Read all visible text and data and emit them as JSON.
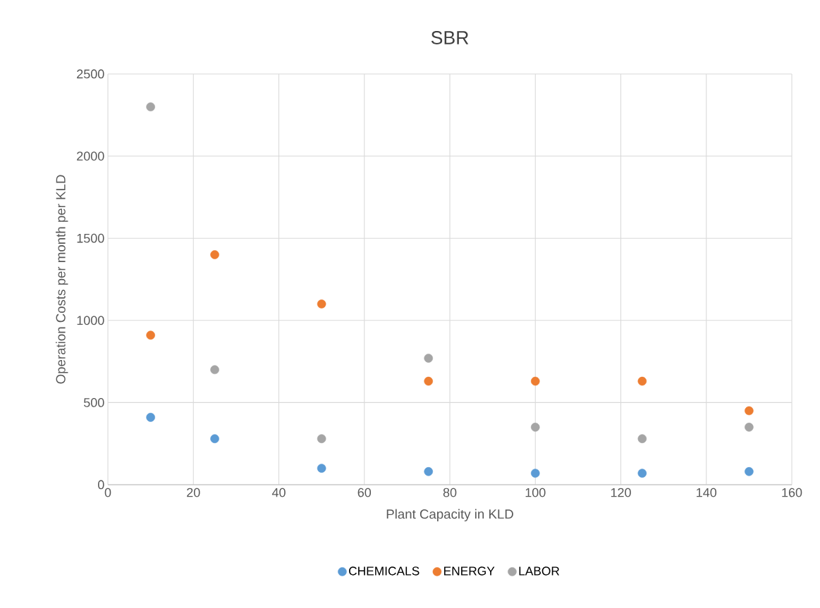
{
  "chart_data": {
    "type": "scatter",
    "title": "SBR",
    "xlabel": "Plant Capacity in KLD",
    "ylabel": "Operation Costs per month per KLD",
    "x": [
      10,
      25,
      50,
      75,
      100,
      125,
      150
    ],
    "series": [
      {
        "name": "CHEMICALS",
        "color": "#5b9bd5",
        "values": [
          410,
          280,
          100,
          80,
          70,
          70,
          80
        ]
      },
      {
        "name": "ENERGY",
        "color": "#ed7d31",
        "values": [
          910,
          1400,
          1100,
          630,
          630,
          630,
          450
        ]
      },
      {
        "name": "LABOR",
        "color": "#a5a5a5",
        "values": [
          2300,
          700,
          280,
          770,
          350,
          280,
          350
        ]
      }
    ],
    "xlim": [
      0,
      160
    ],
    "xticks": [
      0,
      20,
      40,
      60,
      80,
      100,
      120,
      140,
      160
    ],
    "ylim": [
      0,
      2500
    ],
    "yticks": [
      0,
      500,
      1000,
      1500,
      2000,
      2500
    ],
    "grid": true,
    "legend": "bottom",
    "marker": "circle"
  }
}
